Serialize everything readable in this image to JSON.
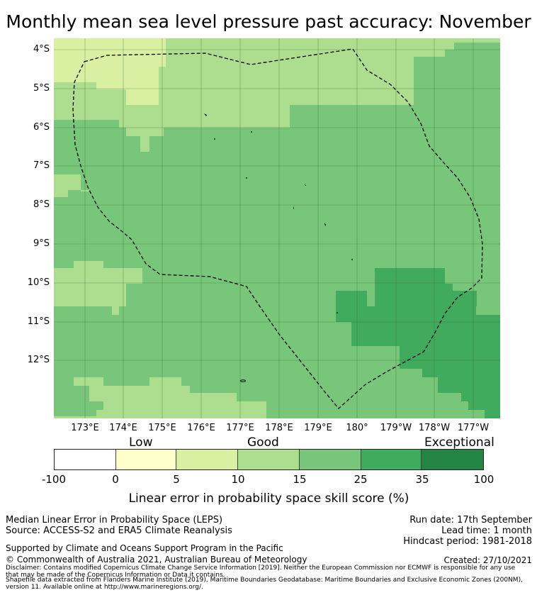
{
  "title": "Monthly mean sea level pressure past accuracy: November",
  "map": {
    "lat_labels": [
      "4°S",
      "5°S",
      "6°S",
      "7°S",
      "8°S",
      "9°S",
      "10°S",
      "11°S",
      "12°S"
    ],
    "lon_labels": [
      "173°E",
      "174°E",
      "175°E",
      "176°E",
      "177°E",
      "178°E",
      "179°E",
      "180°",
      "179°W",
      "178°W",
      "177°W"
    ],
    "eez_line": "dashed boundary (Maritime Boundaries EEZ)",
    "land": "small island outlines"
  },
  "colorbar": {
    "quality_labels": {
      "low": "Low",
      "good": "Good",
      "exceptional": "Exceptional"
    },
    "ticks": [
      "-100",
      "0",
      "5",
      "10",
      "15",
      "25",
      "35",
      "100"
    ],
    "colors": [
      "#ffffff",
      "#ffffcc",
      "#d9f0a3",
      "#addd8e",
      "#78c679",
      "#41ab5d",
      "#238443"
    ],
    "label": "Linear error in probability space skill score (%)"
  },
  "footer": {
    "method": "Median Linear Error in Probability Space (LEPS)",
    "source": "Source: ACCESS-S2 and ERA5 Climate Reanalysis",
    "run_date": "Run date: 17th September",
    "lead_time": "Lead time: 1 month",
    "hindcast": "Hindcast period: 1981-2018",
    "supported": "Supported by Climate and Oceans Support Program in the Pacific",
    "copyright": "© Commonwealth of Australia 2021, Australian Bureau of Meteorology",
    "created": "Created: 27/10/2021",
    "disclaimer1": "Disclaimer: Contains modified Copernicus Climate Change Service Information [2019]. Neither the European Commission nor ECMWF is responsible for any use",
    "disclaimer2": "that may be made of the Copernicus Information or Data it contains.",
    "shapefile1": "Shapefile data extracted from Flanders Marine Institute (2019), Maritime Boundaries Geodatabase: Maritime Boundaries and Exclusive Economic Zones (200NM),",
    "shapefile2": "version 11. Available online at http://www.marineregions.org/."
  }
}
